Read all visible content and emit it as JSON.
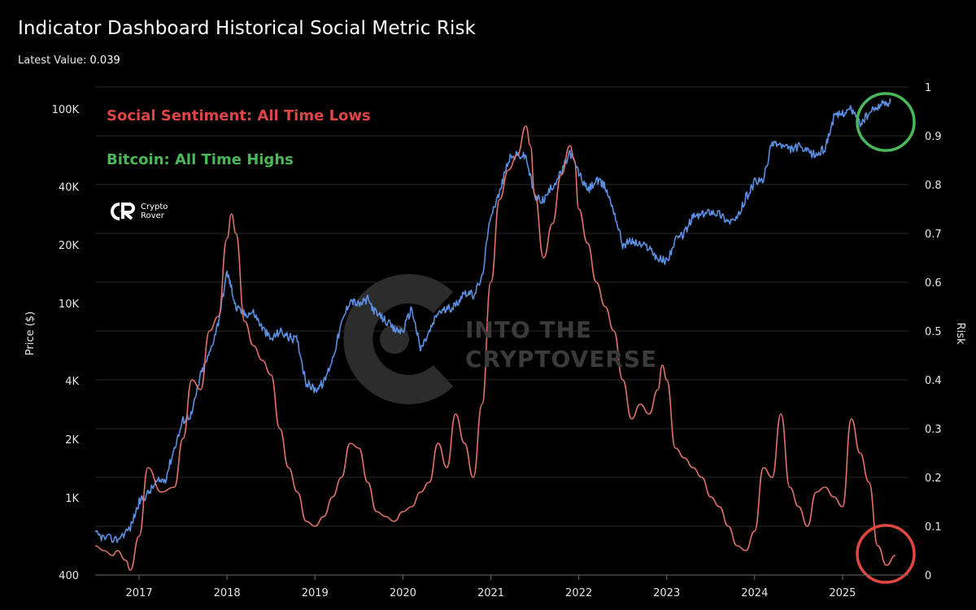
{
  "header": {
    "title": "Indicator Dashboard Historical Social Metric Risk",
    "latest_label": "Latest Value:",
    "latest_value": "0.039"
  },
  "annotations": {
    "sentiment": "Social Sentiment: All Time Lows",
    "bitcoin": "Bitcoin: All Time Highs"
  },
  "logo": {
    "line1": "Crypto",
    "line2": "Rover"
  },
  "watermark": {
    "line1": "INTO THE",
    "line2": "CRYPTOVERSE"
  },
  "colors": {
    "price": "#5b8fe0",
    "risk": "#e2716a",
    "green_circle": "#4ab85a",
    "red_circle": "#e0473f",
    "grid": "#2a2a2a"
  },
  "chart_data": {
    "type": "line",
    "xlabel": "",
    "ylabel_left": "Price ($)",
    "ylabel_right": "Risk",
    "x_ticks": [
      "2017",
      "2018",
      "2019",
      "2020",
      "2021",
      "2022",
      "2023",
      "2024",
      "2025"
    ],
    "x_range": [
      2016.5,
      2025.75
    ],
    "y_left_scale": "log",
    "y_left_ticks": [
      {
        "value": 400,
        "label": "400"
      },
      {
        "value": 1000,
        "label": "1K"
      },
      {
        "value": 2000,
        "label": "2K"
      },
      {
        "value": 4000,
        "label": "4K"
      },
      {
        "value": 10000,
        "label": "10K"
      },
      {
        "value": 20000,
        "label": "20K"
      },
      {
        "value": 40000,
        "label": "40K"
      },
      {
        "value": 100000,
        "label": "100K"
      }
    ],
    "y_right_ticks": [
      "0",
      "0.1",
      "0.2",
      "0.3",
      "0.4",
      "0.5",
      "0.6",
      "0.7",
      "0.8",
      "0.9",
      "1"
    ],
    "y_right_range": [
      0,
      1
    ],
    "series": [
      {
        "name": "Price",
        "axis": "left",
        "x": [
          2016.5,
          2016.6,
          2016.75,
          2016.9,
          2017.0,
          2017.1,
          2017.2,
          2017.3,
          2017.4,
          2017.5,
          2017.6,
          2017.7,
          2017.8,
          2017.9,
          2018.0,
          2018.05,
          2018.1,
          2018.2,
          2018.3,
          2018.4,
          2018.5,
          2018.6,
          2018.7,
          2018.8,
          2018.9,
          2019.0,
          2019.1,
          2019.2,
          2019.3,
          2019.4,
          2019.5,
          2019.6,
          2019.7,
          2019.8,
          2019.9,
          2020.0,
          2020.1,
          2020.2,
          2020.3,
          2020.4,
          2020.5,
          2020.6,
          2020.7,
          2020.8,
          2020.9,
          2021.0,
          2021.1,
          2021.2,
          2021.3,
          2021.4,
          2021.5,
          2021.6,
          2021.7,
          2021.8,
          2021.9,
          2022.0,
          2022.1,
          2022.2,
          2022.3,
          2022.4,
          2022.5,
          2022.6,
          2022.7,
          2022.8,
          2022.9,
          2023.0,
          2023.1,
          2023.2,
          2023.3,
          2023.4,
          2023.5,
          2023.6,
          2023.7,
          2023.8,
          2023.9,
          2024.0,
          2024.1,
          2024.2,
          2024.3,
          2024.4,
          2024.5,
          2024.6,
          2024.7,
          2024.8,
          2024.9,
          2025.0,
          2025.1,
          2025.2,
          2025.3,
          2025.4,
          2025.5,
          2025.55
        ],
        "values": [
          650,
          620,
          610,
          700,
          950,
          1050,
          1200,
          1250,
          1800,
          2500,
          2700,
          4300,
          5500,
          8000,
          14500,
          12000,
          9500,
          8800,
          9000,
          7500,
          6500,
          7200,
          6700,
          6500,
          3900,
          3600,
          3900,
          5200,
          7800,
          10500,
          9800,
          10500,
          8800,
          8200,
          7300,
          7200,
          9500,
          5800,
          7100,
          9000,
          9300,
          9800,
          11500,
          11000,
          13500,
          29000,
          37000,
          55000,
          58000,
          57000,
          35000,
          34000,
          40000,
          47000,
          60000,
          47000,
          38000,
          43000,
          40000,
          30000,
          20000,
          21000,
          20000,
          19500,
          17000,
          16500,
          21000,
          23000,
          28000,
          28500,
          30000,
          29000,
          26500,
          27000,
          35000,
          42000,
          43000,
          68000,
          65000,
          62000,
          64000,
          60000,
          58000,
          63000,
          90000,
          96000,
          100000,
          84000,
          94000,
          104000,
          108000,
          110000
        ]
      },
      {
        "name": "Risk",
        "axis": "right",
        "x": [
          2016.5,
          2016.6,
          2016.7,
          2016.75,
          2016.85,
          2016.9,
          2017.0,
          2017.1,
          2017.25,
          2017.4,
          2017.5,
          2017.6,
          2017.7,
          2017.8,
          2017.9,
          2018.0,
          2018.05,
          2018.1,
          2018.2,
          2018.3,
          2018.4,
          2018.5,
          2018.6,
          2018.7,
          2018.8,
          2018.9,
          2019.0,
          2019.1,
          2019.2,
          2019.3,
          2019.4,
          2019.5,
          2019.6,
          2019.7,
          2019.8,
          2019.9,
          2020.0,
          2020.1,
          2020.2,
          2020.3,
          2020.4,
          2020.5,
          2020.6,
          2020.7,
          2020.8,
          2020.9,
          2021.0,
          2021.1,
          2021.2,
          2021.3,
          2021.4,
          2021.45,
          2021.5,
          2021.6,
          2021.7,
          2021.8,
          2021.9,
          2021.95,
          2022.0,
          2022.1,
          2022.2,
          2022.3,
          2022.4,
          2022.5,
          2022.6,
          2022.7,
          2022.8,
          2022.9,
          2022.95,
          2023.0,
          2023.1,
          2023.2,
          2023.3,
          2023.4,
          2023.5,
          2023.6,
          2023.7,
          2023.8,
          2023.9,
          2024.0,
          2024.1,
          2024.2,
          2024.3,
          2024.4,
          2024.5,
          2024.6,
          2024.7,
          2024.8,
          2024.9,
          2025.0,
          2025.1,
          2025.2,
          2025.3,
          2025.4,
          2025.5,
          2025.6
        ],
        "values": [
          0.06,
          0.05,
          0.04,
          0.05,
          0.03,
          0.01,
          0.08,
          0.22,
          0.17,
          0.18,
          0.28,
          0.4,
          0.38,
          0.5,
          0.53,
          0.69,
          0.74,
          0.7,
          0.52,
          0.47,
          0.44,
          0.41,
          0.3,
          0.22,
          0.17,
          0.11,
          0.1,
          0.12,
          0.16,
          0.2,
          0.27,
          0.26,
          0.19,
          0.13,
          0.12,
          0.11,
          0.13,
          0.14,
          0.17,
          0.19,
          0.27,
          0.22,
          0.33,
          0.27,
          0.2,
          0.35,
          0.6,
          0.77,
          0.83,
          0.86,
          0.92,
          0.88,
          0.78,
          0.65,
          0.72,
          0.82,
          0.88,
          0.85,
          0.75,
          0.68,
          0.6,
          0.55,
          0.5,
          0.4,
          0.32,
          0.35,
          0.33,
          0.38,
          0.43,
          0.4,
          0.26,
          0.24,
          0.22,
          0.2,
          0.16,
          0.14,
          0.1,
          0.06,
          0.05,
          0.09,
          0.22,
          0.2,
          0.33,
          0.18,
          0.14,
          0.1,
          0.17,
          0.18,
          0.16,
          0.14,
          0.32,
          0.25,
          0.19,
          0.06,
          0.02,
          0.04
        ]
      }
    ]
  }
}
